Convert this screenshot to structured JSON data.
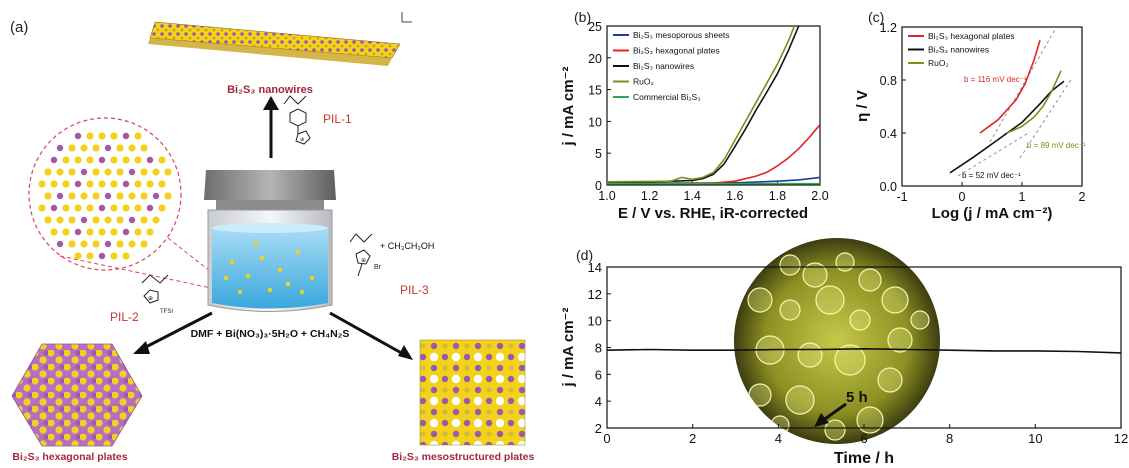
{
  "panel_a": {
    "label": "(a)",
    "nanowires_label": "Bi₂S₃ nanowires",
    "pil1": "PIL-1",
    "pil2": "PIL-2",
    "pil3": "PIL-3",
    "reagents": "DMF + Bi(NO₃)₃·5H₂O + CH₄N₂S",
    "ethanol": "+ CH₃CH₂OH",
    "tfsi": "TFSI",
    "br": "Br",
    "hex_label": "Bi₂S₃ hexagonal plates",
    "meso_label": "Bi₂S₃ mesostructured plates",
    "colors": {
      "sulfur": "#f2d21b",
      "bismuth": "#9b5aa8",
      "liquid": "#74c9ee",
      "arrow_label": "#c0392b"
    }
  },
  "chart_data": [
    {
      "panel": "(b)",
      "type": "line",
      "xlabel": "E / V vs. RHE, iR-corrected",
      "ylabel": "j / mA cm⁻²",
      "xlim": [
        1.0,
        2.0
      ],
      "ylim": [
        0,
        25
      ],
      "xticks": [
        "1.0",
        "1.2",
        "1.4",
        "1.6",
        "1.8",
        "2.0"
      ],
      "yticks": [
        "0",
        "5",
        "10",
        "15",
        "20",
        "25"
      ],
      "legend_position": "top-left",
      "series": [
        {
          "name": "Bi₂S₃ mesoporous sheets",
          "color": "#1f3c9c",
          "x": [
            1.0,
            1.3,
            1.5,
            1.6,
            1.7,
            1.8,
            1.9,
            2.0
          ],
          "y": [
            0.3,
            0.3,
            0.3,
            0.35,
            0.45,
            0.6,
            0.8,
            1.2
          ]
        },
        {
          "name": "Bi₂S₃ hexagonal plates",
          "color": "#e02424",
          "x": [
            1.0,
            1.3,
            1.5,
            1.6,
            1.7,
            1.75,
            1.8,
            1.85,
            1.9,
            1.95,
            2.0
          ],
          "y": [
            0.2,
            0.2,
            0.3,
            0.6,
            1.4,
            2.0,
            3.0,
            4.2,
            5.7,
            7.5,
            9.5
          ]
        },
        {
          "name": "Bi₂S₃ nanowires",
          "color": "#111111",
          "x": [
            1.0,
            1.3,
            1.4,
            1.45,
            1.5,
            1.55,
            1.6,
            1.65,
            1.7,
            1.75,
            1.8,
            1.85,
            1.9
          ],
          "y": [
            0.3,
            0.6,
            0.7,
            1.0,
            1.7,
            3.3,
            6.0,
            8.8,
            11.8,
            14.6,
            17.5,
            21.0,
            25.0
          ]
        },
        {
          "name": "RuO₂",
          "color": "#7f8c1a",
          "x": [
            1.0,
            1.3,
            1.35,
            1.4,
            1.45,
            1.5,
            1.55,
            1.6,
            1.65,
            1.7,
            1.75,
            1.8,
            1.85,
            1.88
          ],
          "y": [
            0.5,
            0.6,
            1.2,
            0.9,
            1.2,
            2.0,
            4.0,
            7.0,
            10.0,
            13.0,
            16.0,
            19.0,
            22.5,
            25.0
          ]
        },
        {
          "name": "Commercial Bi₂S₃",
          "color": "#2ea84f",
          "x": [
            1.0,
            1.5,
            2.0
          ],
          "y": [
            0.2,
            0.2,
            0.2
          ]
        }
      ]
    },
    {
      "panel": "(c)",
      "type": "line",
      "xlabel": "Log (j / mA cm⁻²)",
      "ylabel": "η / V",
      "xlim": [
        -1,
        2
      ],
      "ylim": [
        0.0,
        1.2
      ],
      "xticks": [
        "-1",
        "0",
        "1",
        "2"
      ],
      "yticks": [
        "0.0",
        "0.4",
        "0.8",
        "1.2"
      ],
      "legend_position": "top-left",
      "annotations": [
        "b = 116 mV dec⁻¹",
        "b = 89 mV dec⁻¹",
        "b = 52 mV dec⁻¹"
      ],
      "series": [
        {
          "name": "Bi₂S₃ hexagonal plates",
          "color": "#e02424",
          "x": [
            0.3,
            0.6,
            0.9,
            1.05,
            1.2,
            1.3
          ],
          "y": [
            0.4,
            0.5,
            0.65,
            0.77,
            0.95,
            1.1
          ]
        },
        {
          "name": "Bi₂S₃ nanowires",
          "color": "#111111",
          "x": [
            -0.2,
            0.2,
            0.6,
            1.0,
            1.3,
            1.5,
            1.7
          ],
          "y": [
            0.1,
            0.22,
            0.35,
            0.48,
            0.62,
            0.72,
            0.79
          ]
        },
        {
          "name": "RuO₂",
          "color": "#7f8c1a",
          "x": [
            0.75,
            1.0,
            1.2,
            1.35,
            1.5,
            1.65
          ],
          "y": [
            0.4,
            0.45,
            0.52,
            0.6,
            0.72,
            0.87
          ]
        }
      ]
    },
    {
      "panel": "(d)",
      "type": "line",
      "xlabel": "Time / h",
      "ylabel": "j / mA cm⁻²",
      "xlim": [
        0,
        12
      ],
      "ylim": [
        2,
        14
      ],
      "xticks": [
        "0",
        "2",
        "4",
        "6",
        "8",
        "10",
        "12"
      ],
      "yticks": [
        "2",
        "4",
        "6",
        "8",
        "10",
        "12",
        "14"
      ],
      "annotations": [
        "5 h"
      ],
      "series": [
        {
          "color": "#111111",
          "x": [
            0,
            1,
            2,
            3,
            4,
            5,
            6,
            7,
            8,
            9,
            10,
            11,
            12
          ],
          "y": [
            7.8,
            7.85,
            7.8,
            7.8,
            7.85,
            7.85,
            7.9,
            7.85,
            7.8,
            7.75,
            7.75,
            7.7,
            7.6
          ]
        }
      ]
    }
  ]
}
